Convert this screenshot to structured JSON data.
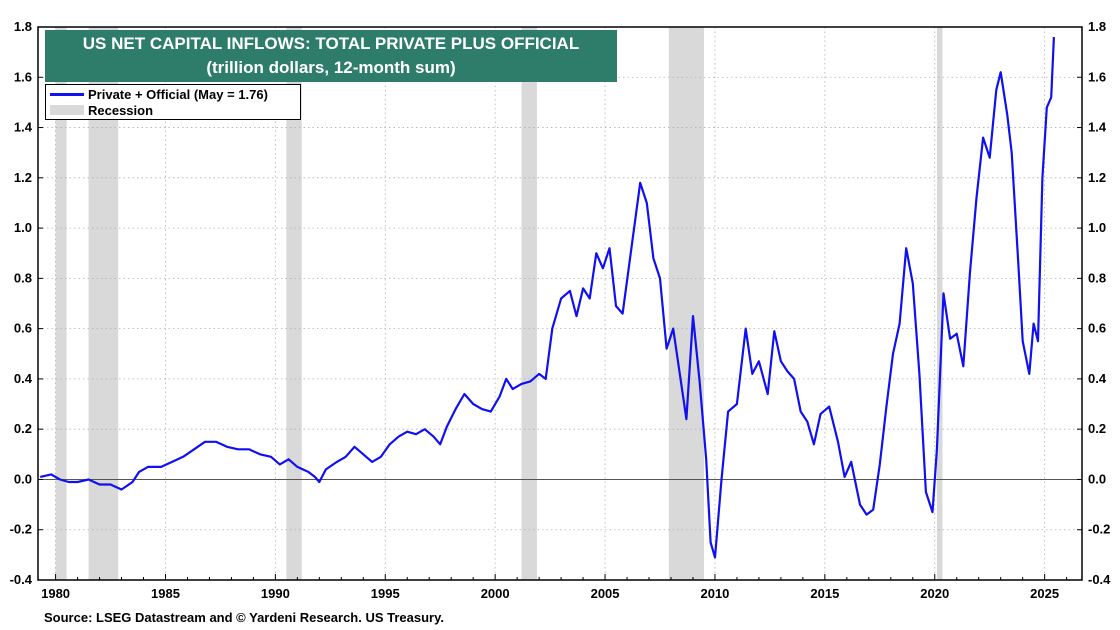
{
  "chart_data": {
    "type": "line",
    "title": "US NET CAPITAL INFLOWS: TOTAL PRIVATE PLUS OFFICIAL",
    "subtitle": "(trillion dollars, 12-month sum)",
    "ylim": [
      -0.4,
      1.8
    ],
    "xlim": [
      1979.2,
      2026.7
    ],
    "y_ticks": [
      "-0.4",
      "-0.2",
      "0.0",
      "0.2",
      "0.4",
      "0.6",
      "0.8",
      "1.0",
      "1.2",
      "1.4",
      "1.6",
      "1.8"
    ],
    "x_ticks": [
      "1980",
      "1985",
      "1990",
      "1995",
      "2000",
      "2005",
      "2010",
      "2015",
      "2020",
      "2025"
    ],
    "grid": true,
    "legend_placement": "top-left",
    "series": [
      {
        "name": "Private + Official (May = 1.76)",
        "color": "#1010f0",
        "points": [
          [
            1979.3,
            0.01
          ],
          [
            1979.8,
            0.02
          ],
          [
            1980.2,
            0.0
          ],
          [
            1980.6,
            -0.01
          ],
          [
            1981.0,
            -0.01
          ],
          [
            1981.5,
            0.0
          ],
          [
            1982.0,
            -0.02
          ],
          [
            1982.5,
            -0.02
          ],
          [
            1983.0,
            -0.04
          ],
          [
            1983.5,
            -0.01
          ],
          [
            1983.8,
            0.03
          ],
          [
            1984.2,
            0.05
          ],
          [
            1984.8,
            0.05
          ],
          [
            1985.3,
            0.07
          ],
          [
            1985.8,
            0.09
          ],
          [
            1986.3,
            0.12
          ],
          [
            1986.8,
            0.15
          ],
          [
            1987.3,
            0.15
          ],
          [
            1987.8,
            0.13
          ],
          [
            1988.3,
            0.12
          ],
          [
            1988.8,
            0.12
          ],
          [
            1989.3,
            0.1
          ],
          [
            1989.8,
            0.09
          ],
          [
            1990.2,
            0.06
          ],
          [
            1990.6,
            0.08
          ],
          [
            1991.0,
            0.05
          ],
          [
            1991.5,
            0.03
          ],
          [
            1991.8,
            0.01
          ],
          [
            1992.0,
            -0.01
          ],
          [
            1992.3,
            0.04
          ],
          [
            1992.8,
            0.07
          ],
          [
            1993.2,
            0.09
          ],
          [
            1993.6,
            0.13
          ],
          [
            1994.0,
            0.1
          ],
          [
            1994.4,
            0.07
          ],
          [
            1994.8,
            0.09
          ],
          [
            1995.2,
            0.14
          ],
          [
            1995.6,
            0.17
          ],
          [
            1996.0,
            0.19
          ],
          [
            1996.4,
            0.18
          ],
          [
            1996.8,
            0.2
          ],
          [
            1997.2,
            0.17
          ],
          [
            1997.5,
            0.14
          ],
          [
            1997.8,
            0.21
          ],
          [
            1998.2,
            0.28
          ],
          [
            1998.6,
            0.34
          ],
          [
            1999.0,
            0.3
          ],
          [
            1999.4,
            0.28
          ],
          [
            1999.8,
            0.27
          ],
          [
            2000.2,
            0.33
          ],
          [
            2000.5,
            0.4
          ],
          [
            2000.8,
            0.36
          ],
          [
            2001.2,
            0.38
          ],
          [
            2001.6,
            0.39
          ],
          [
            2002.0,
            0.42
          ],
          [
            2002.3,
            0.4
          ],
          [
            2002.6,
            0.6
          ],
          [
            2003.0,
            0.72
          ],
          [
            2003.4,
            0.75
          ],
          [
            2003.7,
            0.65
          ],
          [
            2004.0,
            0.76
          ],
          [
            2004.3,
            0.72
          ],
          [
            2004.6,
            0.9
          ],
          [
            2004.9,
            0.84
          ],
          [
            2005.2,
            0.92
          ],
          [
            2005.5,
            0.69
          ],
          [
            2005.8,
            0.66
          ],
          [
            2006.2,
            0.92
          ],
          [
            2006.6,
            1.18
          ],
          [
            2006.9,
            1.1
          ],
          [
            2007.2,
            0.88
          ],
          [
            2007.5,
            0.8
          ],
          [
            2007.8,
            0.52
          ],
          [
            2008.1,
            0.6
          ],
          [
            2008.4,
            0.42
          ],
          [
            2008.7,
            0.24
          ],
          [
            2009.0,
            0.65
          ],
          [
            2009.3,
            0.39
          ],
          [
            2009.6,
            0.08
          ],
          [
            2009.8,
            -0.25
          ],
          [
            2010.0,
            -0.31
          ],
          [
            2010.3,
            0.0
          ],
          [
            2010.6,
            0.27
          ],
          [
            2011.0,
            0.3
          ],
          [
            2011.4,
            0.6
          ],
          [
            2011.7,
            0.42
          ],
          [
            2012.0,
            0.47
          ],
          [
            2012.4,
            0.34
          ],
          [
            2012.7,
            0.59
          ],
          [
            2013.0,
            0.47
          ],
          [
            2013.3,
            0.43
          ],
          [
            2013.6,
            0.4
          ],
          [
            2013.9,
            0.27
          ],
          [
            2014.2,
            0.23
          ],
          [
            2014.5,
            0.14
          ],
          [
            2014.8,
            0.26
          ],
          [
            2015.2,
            0.29
          ],
          [
            2015.6,
            0.15
          ],
          [
            2015.9,
            0.01
          ],
          [
            2016.2,
            0.07
          ],
          [
            2016.6,
            -0.1
          ],
          [
            2016.9,
            -0.14
          ],
          [
            2017.2,
            -0.12
          ],
          [
            2017.5,
            0.06
          ],
          [
            2017.8,
            0.29
          ],
          [
            2018.1,
            0.5
          ],
          [
            2018.4,
            0.62
          ],
          [
            2018.7,
            0.92
          ],
          [
            2019.0,
            0.78
          ],
          [
            2019.3,
            0.42
          ],
          [
            2019.6,
            -0.05
          ],
          [
            2019.9,
            -0.13
          ],
          [
            2020.1,
            0.12
          ],
          [
            2020.4,
            0.74
          ],
          [
            2020.7,
            0.56
          ],
          [
            2021.0,
            0.58
          ],
          [
            2021.3,
            0.45
          ],
          [
            2021.6,
            0.82
          ],
          [
            2021.9,
            1.12
          ],
          [
            2022.2,
            1.36
          ],
          [
            2022.5,
            1.28
          ],
          [
            2022.8,
            1.55
          ],
          [
            2023.0,
            1.62
          ],
          [
            2023.3,
            1.45
          ],
          [
            2023.5,
            1.3
          ],
          [
            2023.8,
            0.86
          ],
          [
            2024.0,
            0.55
          ],
          [
            2024.3,
            0.42
          ],
          [
            2024.5,
            0.62
          ],
          [
            2024.7,
            0.55
          ],
          [
            2024.9,
            1.2
          ],
          [
            2025.1,
            1.48
          ],
          [
            2025.3,
            1.52
          ],
          [
            2025.42,
            1.76
          ]
        ]
      }
    ],
    "recessions": [
      [
        1980.0,
        1980.5
      ],
      [
        1981.5,
        1982.85
      ],
      [
        1990.5,
        1991.2
      ],
      [
        2001.2,
        2001.9
      ],
      [
        2007.9,
        2009.5
      ],
      [
        2020.1,
        2020.35
      ]
    ],
    "legend": [
      "Private + Official (May = 1.76)",
      "Recession"
    ],
    "source": "Source: LSEG Datastream and © Yardeni Research. US Treasury."
  }
}
